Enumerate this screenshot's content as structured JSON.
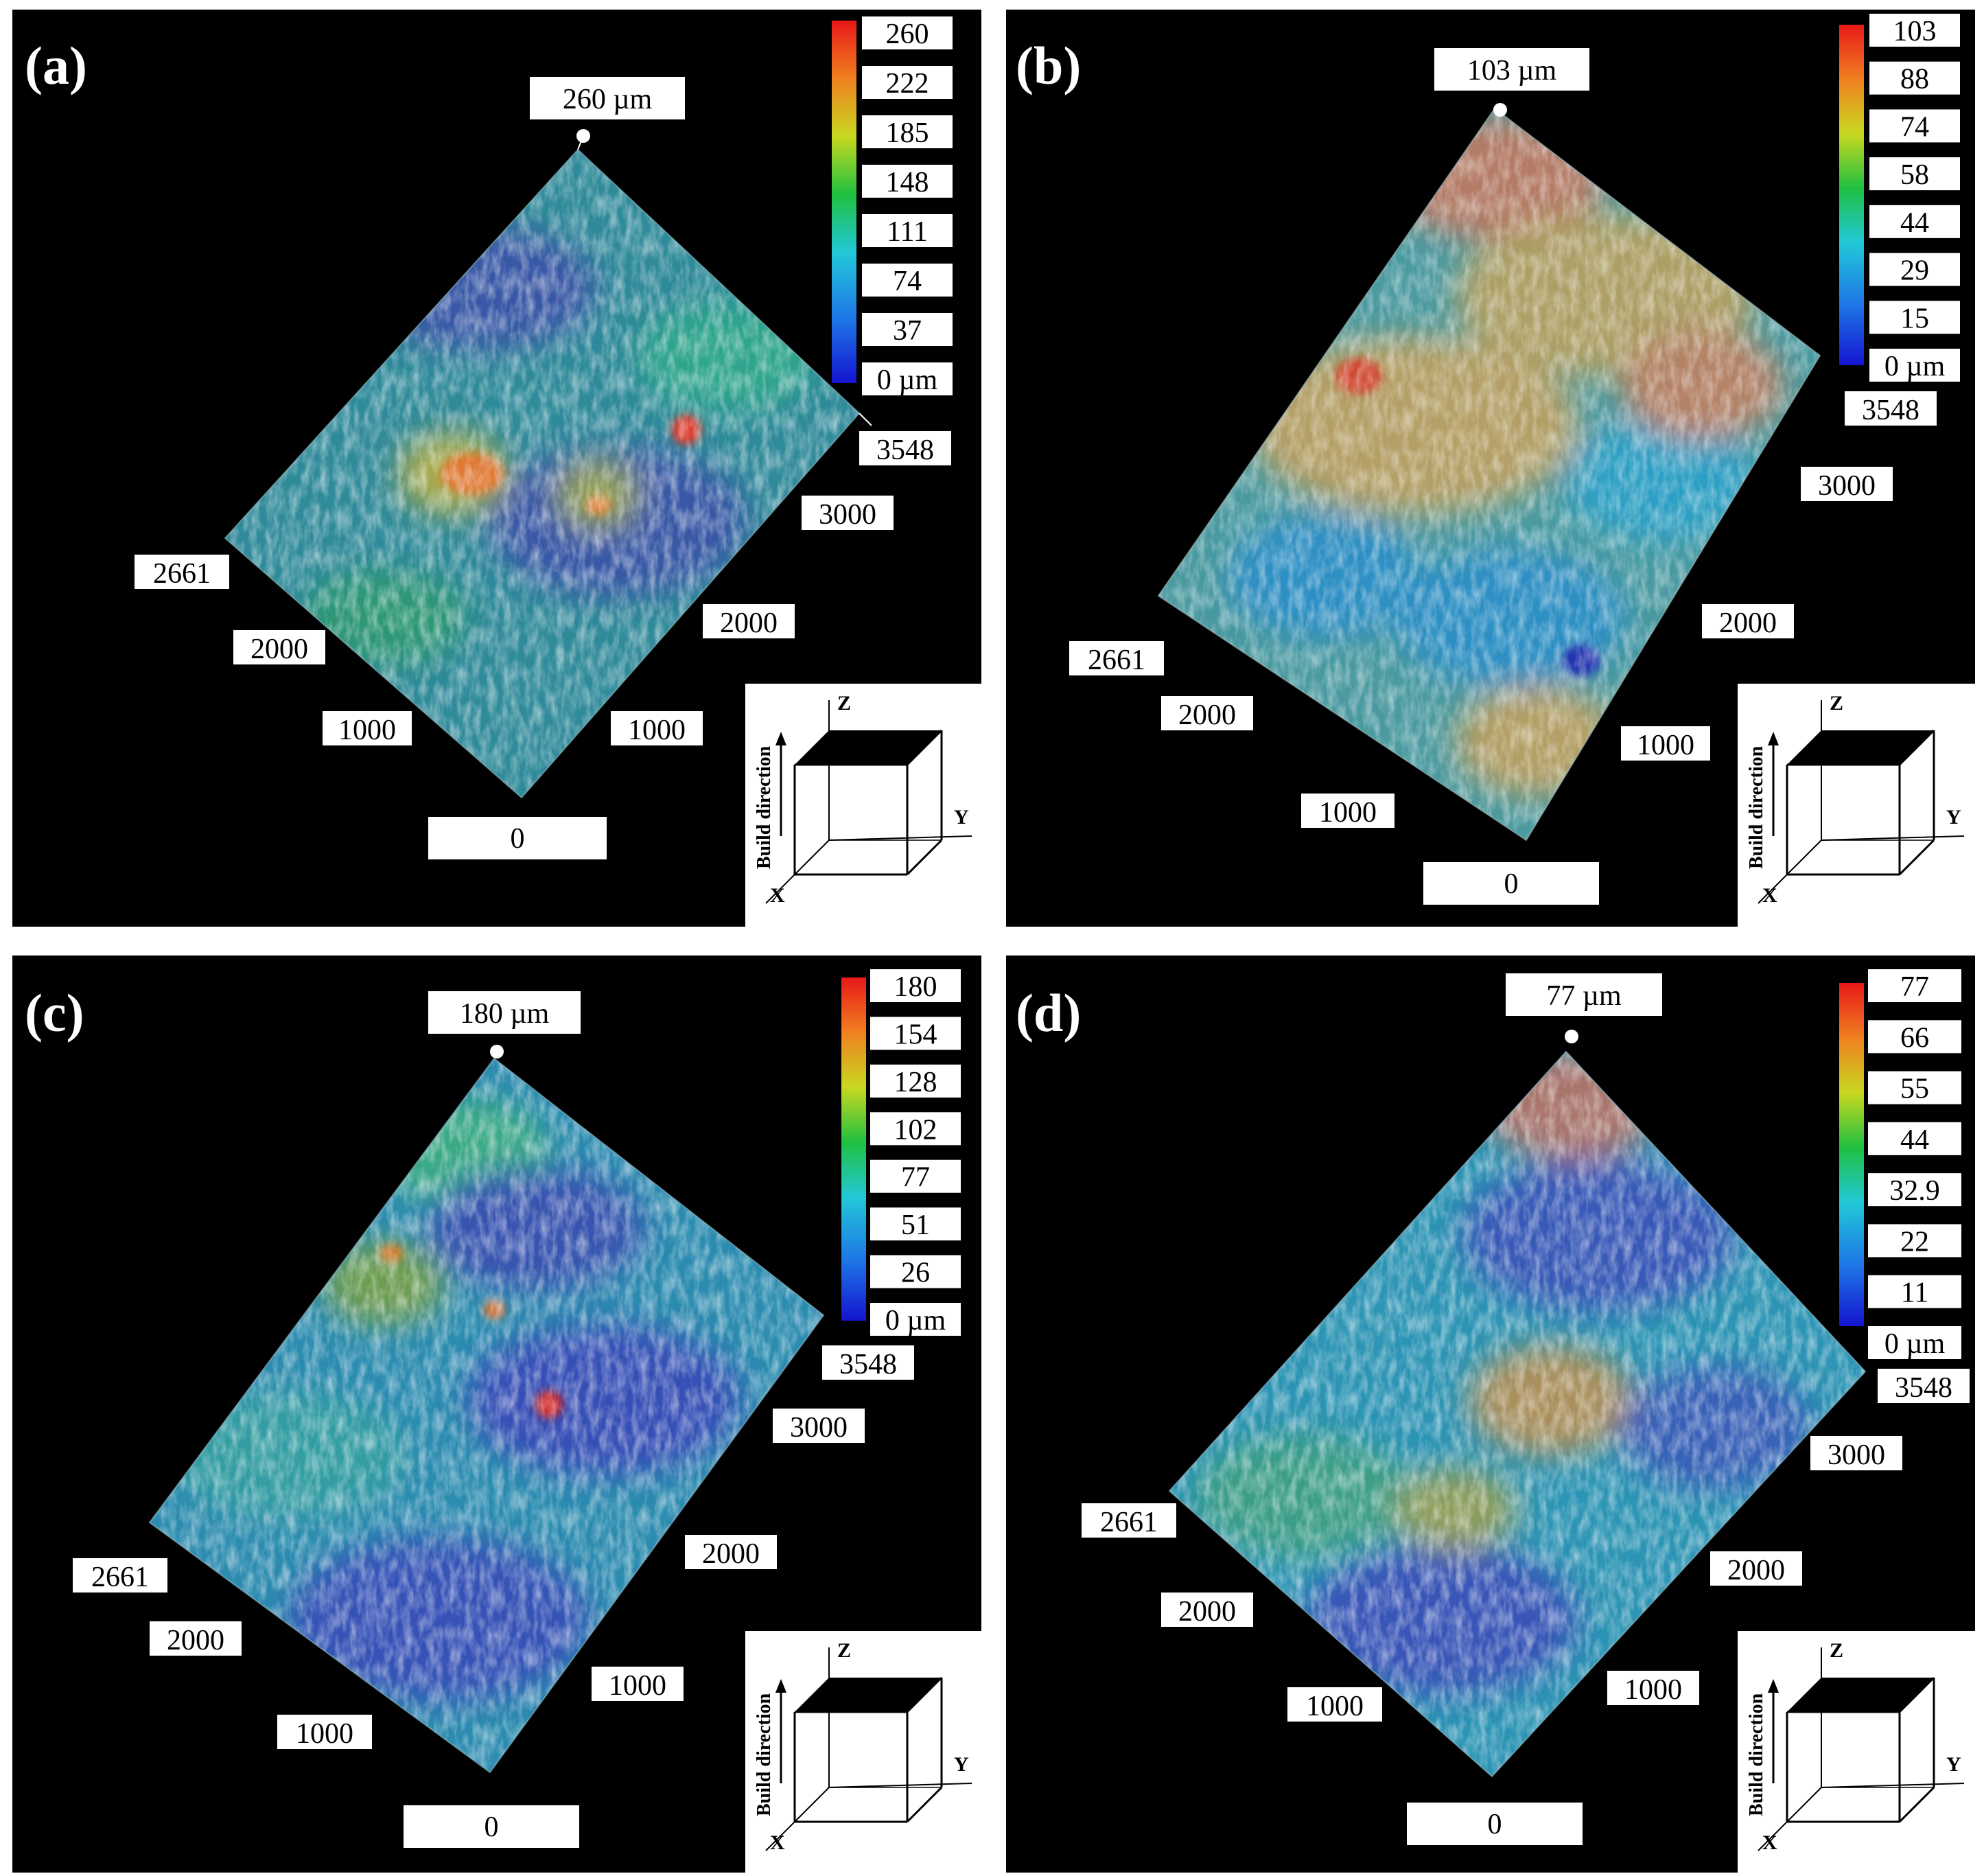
{
  "panels": [
    {
      "id": "a",
      "letter": "(a)",
      "peak_label": "260 µm",
      "colorbar": [
        "260",
        "222",
        "185",
        "148",
        "111",
        "74",
        "37",
        "0 µm"
      ],
      "y_ticks": [
        "3548",
        "3000",
        "2000",
        "1000"
      ],
      "x_ticks": [
        "2661",
        "2000",
        "1000"
      ],
      "origin": "0",
      "axes": {
        "z": "Z",
        "y": "Y",
        "x": "X",
        "build": "Build direction"
      }
    },
    {
      "id": "b",
      "letter": "(b)",
      "peak_label": "103 µm",
      "colorbar": [
        "103",
        "88",
        "74",
        "58",
        "44",
        "29",
        "15",
        "0 µm"
      ],
      "y_ticks": [
        "3548",
        "3000",
        "2000",
        "1000"
      ],
      "x_ticks": [
        "2661",
        "2000",
        "1000"
      ],
      "origin": "0",
      "axes": {
        "z": "Z",
        "y": "Y",
        "x": "X",
        "build": "Build direction"
      }
    },
    {
      "id": "c",
      "letter": "(c)",
      "peak_label": "180 µm",
      "colorbar": [
        "180",
        "154",
        "128",
        "102",
        "77",
        "51",
        "26",
        "0 µm"
      ],
      "y_ticks": [
        "3548",
        "3000",
        "2000",
        "1000"
      ],
      "x_ticks": [
        "2661",
        "2000",
        "1000"
      ],
      "origin": "0",
      "axes": {
        "z": "Z",
        "y": "Y",
        "x": "X",
        "build": "Build direction"
      }
    },
    {
      "id": "d",
      "letter": "(d)",
      "peak_label": "77 µm",
      "colorbar": [
        "77",
        "66",
        "55",
        "44",
        "32.9",
        "22",
        "11",
        "0 µm"
      ],
      "y_ticks": [
        "3548",
        "3000",
        "2000",
        "1000"
      ],
      "x_ticks": [
        "2661",
        "2000",
        "1000"
      ],
      "origin": "0",
      "axes": {
        "z": "Z",
        "y": "Y",
        "x": "X",
        "build": "Build direction"
      }
    }
  ]
}
